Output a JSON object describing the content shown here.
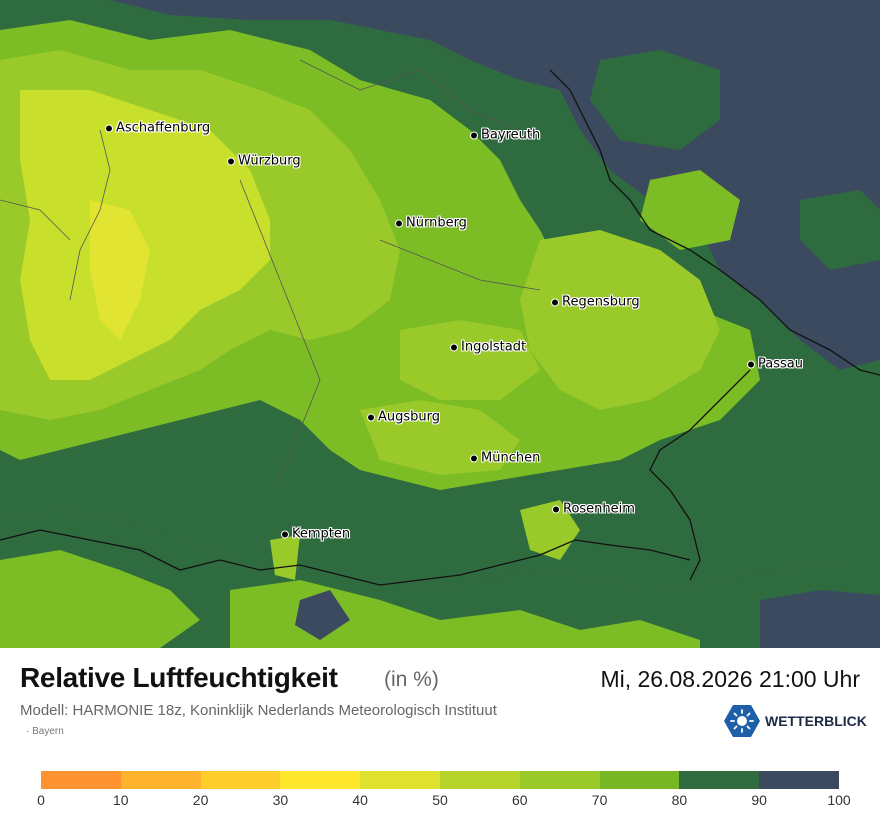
{
  "map": {
    "colors": {
      "c50_60": "#9ac92a",
      "c60_70": "#7cbc25",
      "c70_80": "#2e6b3f",
      "c80_90": "#3c4a60",
      "c40_50": "#c8df2c",
      "c30_40": "#e1e532",
      "c90_100": "#3c4a60"
    },
    "cities": [
      {
        "name": "Aschaffenburg"
      },
      {
        "name": "Würzburg"
      },
      {
        "name": "Bayreuth"
      },
      {
        "name": "Nürnberg"
      },
      {
        "name": "Regensburg"
      },
      {
        "name": "Ingolstadt"
      },
      {
        "name": "Passau"
      },
      {
        "name": "Augsburg"
      },
      {
        "name": "München"
      },
      {
        "name": "Rosenheim"
      },
      {
        "name": "Kempten"
      }
    ]
  },
  "footer": {
    "title": "Relative Luftfeuchtigkeit",
    "unit": "(in %)",
    "datetime": "Mi, 26.08.2026 21:00 Uhr",
    "model": "Modell: HARMONIE 18z, Koninklijk Nederlands Meteorologisch Instituut",
    "region": "Bayern",
    "brand": "WETTERBLICK",
    "brand_icon": "sun-logo-icon"
  },
  "legend": {
    "colors": [
      "#ff9330",
      "#ffb22c",
      "#ffcd2c",
      "#ffe72e",
      "#dfe12e",
      "#b7d42c",
      "#9ac92a",
      "#78b724",
      "#2f6b3e",
      "#3c4a60"
    ],
    "ticks": [
      "0",
      "10",
      "20",
      "30",
      "40",
      "50",
      "60",
      "70",
      "80",
      "90",
      "100"
    ]
  }
}
